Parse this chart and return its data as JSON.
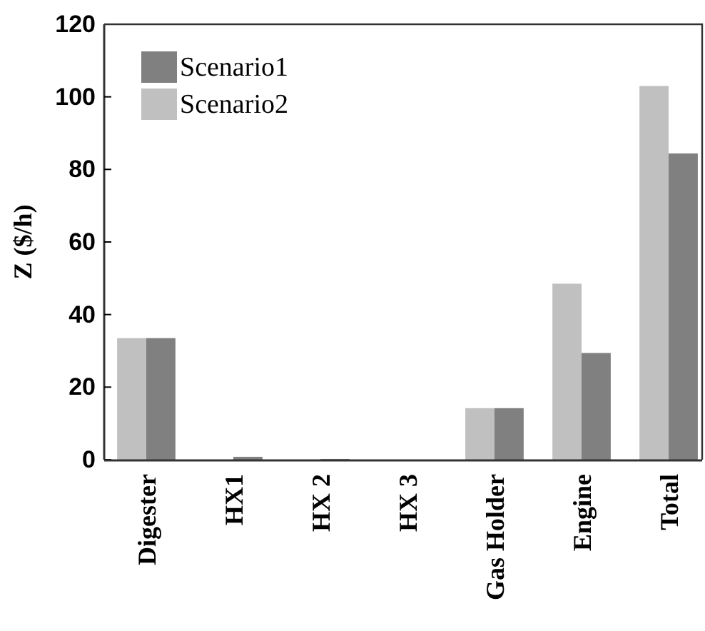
{
  "chart_data": {
    "type": "bar",
    "ylabel": "Z ($/h)",
    "categories": [
      "Digester",
      "HX1",
      "HX 2",
      "HX 3",
      "Gas Holder",
      "Engine",
      "Total"
    ],
    "series": [
      {
        "name": "Scenario1",
        "color": "#808080",
        "values": [
          33.5,
          0.8,
          0.2,
          null,
          14.2,
          29.4,
          84.4
        ]
      },
      {
        "name": "Scenario2",
        "color": "#c0c0c0",
        "values": [
          33.5,
          null,
          null,
          null,
          14.2,
          48.5,
          103
        ]
      }
    ],
    "ylim": [
      0,
      120
    ],
    "yticks": [
      0,
      20,
      40,
      60,
      80,
      100,
      120
    ],
    "legend": "top left",
    "grid": false
  }
}
